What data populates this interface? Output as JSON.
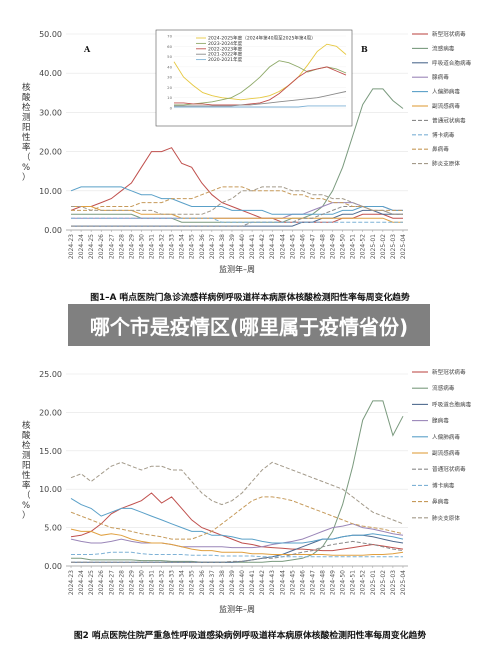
{
  "banner": {
    "text": "哪个市是疫情区(哪里属于疫情省份)"
  },
  "legend": {
    "items": [
      {
        "name": "新型冠状病毒",
        "color": "#c0504d",
        "dash": ""
      },
      {
        "name": "流感病毒",
        "color": "#7a9a7e",
        "dash": ""
      },
      {
        "name": "呼吸道合胞病毒",
        "color": "#4f6a8f",
        "dash": ""
      },
      {
        "name": "腺病毒",
        "color": "#9a86b8",
        "dash": ""
      },
      {
        "name": "人偏肺病毒",
        "color": "#5aa0c8",
        "dash": ""
      },
      {
        "name": "副流感病毒",
        "color": "#e0a040",
        "dash": ""
      },
      {
        "name": "普通冠状病毒",
        "color": "#8a8a8a",
        "dash": "4,2"
      },
      {
        "name": "博卡病毒",
        "color": "#7fb2d6",
        "dash": "4,2"
      },
      {
        "name": "鼻病毒",
        "color": "#c69a5a",
        "dash": "4,2"
      },
      {
        "name": "肺炎支原体",
        "color": "#a39a8a",
        "dash": "4,2"
      }
    ]
  },
  "chart_data": [
    {
      "type": "line",
      "title": "图1–A 哨点医院门急诊流感样病例呼吸道样本病原体核酸检测阳性率每周变化趋势",
      "panel_labels": [
        "A",
        "B"
      ],
      "xlabel": "监测年–周",
      "ylabel": "核酸检测阳性率（%）",
      "ylim": [
        0,
        50
      ],
      "yticks": [
        "0.00",
        "10.00",
        "20.00",
        "30.00",
        "40.00",
        "50.00"
      ],
      "x": [
        "2024-23",
        "2024-24",
        "2024-25",
        "2024-26",
        "2024-27",
        "2024-28",
        "2024-29",
        "2024-30",
        "2024-31",
        "2024-32",
        "2024-33",
        "2024-34",
        "2024-35",
        "2024-36",
        "2024-37",
        "2024-38",
        "2024-39",
        "2024-40",
        "2024-41",
        "2024-42",
        "2024-43",
        "2024-44",
        "2024-45",
        "2024-46",
        "2024-47",
        "2024-48",
        "2024-49",
        "2024-50",
        "2024-51",
        "2024-52",
        "2025-01",
        "2025-02",
        "2025-03",
        "2025-04"
      ],
      "series": [
        {
          "name": "新型冠状病毒",
          "values": [
            5,
            6,
            6,
            7,
            8,
            10,
            12,
            16,
            20,
            20,
            21,
            17,
            16,
            12,
            9,
            7,
            6,
            5,
            4,
            3,
            3,
            2,
            2,
            2,
            2,
            2,
            2,
            3,
            3,
            4,
            4,
            4,
            3,
            3
          ]
        },
        {
          "name": "流感病毒",
          "values": [
            4,
            4,
            4,
            4,
            4,
            4,
            4,
            3,
            3,
            3,
            3,
            2,
            2,
            2,
            2,
            2,
            2,
            2,
            2,
            2,
            2,
            2,
            3,
            3,
            4,
            6,
            10,
            16,
            24,
            32,
            36,
            36,
            33,
            31
          ]
        },
        {
          "name": "呼吸道合胞病毒",
          "values": [
            1,
            1,
            1,
            1,
            1,
            1,
            1,
            1,
            1,
            1,
            1,
            1,
            1,
            1,
            1,
            1,
            1,
            1,
            1,
            1,
            1,
            1,
            1,
            2,
            2,
            3,
            3,
            4,
            4,
            5,
            5,
            4,
            4,
            4
          ]
        },
        {
          "name": "腺病毒",
          "values": [
            3,
            3,
            3,
            3,
            3,
            3,
            3,
            3,
            3,
            3,
            3,
            3,
            3,
            3,
            3,
            3,
            3,
            3,
            3,
            3,
            3,
            3,
            4,
            4,
            5,
            6,
            7,
            7,
            7,
            6,
            6,
            6,
            5,
            5
          ]
        },
        {
          "name": "人偏肺病毒",
          "values": [
            10,
            11,
            11,
            11,
            11,
            11,
            10,
            9,
            9,
            8,
            8,
            7,
            6,
            6,
            6,
            6,
            5,
            5,
            5,
            5,
            4,
            4,
            4,
            4,
            4,
            4,
            4,
            5,
            5,
            6,
            6,
            6,
            5,
            5
          ]
        },
        {
          "name": "副流感病毒",
          "values": [
            6,
            6,
            6,
            5,
            5,
            5,
            5,
            4,
            4,
            4,
            4,
            3,
            3,
            3,
            3,
            3,
            3,
            3,
            3,
            3,
            3,
            3,
            3,
            3,
            3,
            3,
            3,
            3,
            3,
            3,
            3,
            3,
            2,
            2
          ]
        },
        {
          "name": "普通冠状病毒",
          "values": [
            1,
            1,
            1,
            1,
            1,
            1,
            1,
            1,
            1,
            1,
            1,
            1,
            1,
            1,
            1,
            1,
            1,
            1,
            2,
            2,
            2,
            2,
            2,
            3,
            3,
            4,
            5,
            6,
            6,
            6,
            5,
            5,
            4,
            4
          ]
        },
        {
          "name": "博卡病毒",
          "values": [
            3,
            3,
            3,
            3,
            3,
            3,
            3,
            3,
            3,
            3,
            3,
            3,
            3,
            3,
            3,
            2,
            2,
            2,
            2,
            2,
            2,
            2,
            2,
            2,
            2,
            2,
            2,
            2,
            2,
            2,
            2,
            2,
            2,
            2
          ]
        },
        {
          "name": "鼻病毒",
          "values": [
            5,
            5,
            5,
            6,
            6,
            6,
            6,
            7,
            7,
            7,
            8,
            8,
            8,
            9,
            10,
            11,
            11,
            11,
            10,
            10,
            10,
            10,
            9,
            9,
            8,
            8,
            7,
            7,
            6,
            6,
            5,
            5,
            5,
            5
          ]
        },
        {
          "name": "肺炎支原体",
          "values": [
            6,
            6,
            5,
            5,
            5,
            5,
            5,
            5,
            5,
            4,
            4,
            4,
            4,
            4,
            5,
            7,
            8,
            10,
            10,
            11,
            11,
            11,
            10,
            10,
            9,
            9,
            8,
            8,
            7,
            6,
            5,
            5,
            4,
            4
          ]
        }
      ],
      "inset": {
        "type": "line",
        "ylim": [
          0,
          70
        ],
        "yticks": [
          "0",
          "10",
          "20",
          "30",
          "40",
          "50",
          "60",
          "70"
        ],
        "series": [
          {
            "name": "2024-2025年度（2024年第40周至2025年第4周）",
            "color": "#e6c840",
            "values": [
              45,
              30,
              22,
              15,
              12,
              10,
              9,
              8,
              9,
              10,
              12,
              16,
              22,
              30,
              42,
              55,
              62,
              60,
              52
            ]
          },
          {
            "name": "2023-2024年度",
            "color": "#8faa6a",
            "values": [
              3,
              3,
              4,
              5,
              6,
              8,
              10,
              15,
              22,
              30,
              40,
              46,
              44,
              40,
              35,
              38,
              40,
              38,
              34
            ]
          },
          {
            "name": "2022-2023年度",
            "color": "#c0504d",
            "values": [
              5,
              5,
              4,
              4,
              3,
              3,
              3,
              3,
              4,
              5,
              8,
              14,
              22,
              30,
              36,
              38,
              40,
              36,
              32
            ]
          },
          {
            "name": "2021-2022年度",
            "color": "#8a8a8a",
            "values": [
              2,
              2,
              2,
              2,
              2,
              2,
              2,
              3,
              3,
              4,
              5,
              6,
              7,
              8,
              9,
              10,
              12,
              14,
              16
            ]
          },
          {
            "name": "2020-2021年度",
            "color": "#7fb2d6",
            "values": [
              1,
              1,
              1,
              1,
              1,
              1,
              1,
              1,
              1,
              1,
              1,
              1,
              1,
              1,
              2,
              2,
              2,
              2,
              2
            ]
          }
        ]
      }
    },
    {
      "type": "line",
      "title": "图2 哨点医院住院严重急性呼吸道感染病例呼吸道样本病原体核酸检测阳性率每周变化趋势",
      "xlabel": "监测年–周",
      "ylabel": "核酸检测阳性率（%）",
      "ylim": [
        0,
        25
      ],
      "yticks": [
        "0.00",
        "5.00",
        "10.00",
        "15.00",
        "20.00",
        "25.00"
      ],
      "x": [
        "2024-23",
        "2024-24",
        "2024-25",
        "2024-26",
        "2024-27",
        "2024-28",
        "2024-29",
        "2024-30",
        "2024-31",
        "2024-32",
        "2024-33",
        "2024-34",
        "2024-35",
        "2024-36",
        "2024-37",
        "2024-38",
        "2024-39",
        "2024-40",
        "2024-41",
        "2024-42",
        "2024-43",
        "2024-44",
        "2024-45",
        "2024-46",
        "2024-47",
        "2024-48",
        "2024-49",
        "2024-50",
        "2024-51",
        "2024-52",
        "2025-01",
        "2025-02",
        "2025-03",
        "2025-04"
      ],
      "series": [
        {
          "name": "新型冠状病毒",
          "values": [
            3.8,
            4.0,
            4.5,
            5.5,
            6.8,
            7.5,
            8.0,
            8.5,
            9.5,
            8.2,
            9.0,
            7.5,
            6.0,
            5.0,
            4.5,
            4.0,
            3.5,
            3.0,
            2.8,
            2.5,
            2.4,
            2.3,
            2.2,
            2.2,
            2.1,
            2.0,
            2.0,
            2.2,
            2.4,
            2.6,
            2.8,
            2.6,
            2.4,
            2.2
          ]
        },
        {
          "name": "流感病毒",
          "values": [
            1.0,
            1.0,
            0.8,
            0.8,
            0.8,
            0.8,
            0.8,
            0.7,
            0.7,
            0.7,
            0.6,
            0.6,
            0.6,
            0.5,
            0.5,
            0.5,
            0.5,
            0.5,
            0.5,
            0.5,
            0.6,
            0.6,
            0.8,
            1.0,
            1.5,
            2.5,
            4.5,
            8.0,
            13.0,
            19.0,
            21.5,
            21.5,
            17.0,
            19.5
          ]
        },
        {
          "name": "呼吸道合胞病毒",
          "values": [
            0.5,
            0.5,
            0.5,
            0.5,
            0.5,
            0.5,
            0.5,
            0.5,
            0.5,
            0.5,
            0.5,
            0.5,
            0.5,
            0.5,
            0.5,
            0.5,
            0.5,
            0.6,
            0.8,
            1.0,
            1.2,
            1.5,
            2.0,
            2.5,
            3.0,
            3.5,
            3.5,
            3.8,
            4.0,
            4.0,
            3.8,
            3.5,
            3.2,
            3.0
          ]
        },
        {
          "name": "腺病毒",
          "values": [
            3.5,
            3.2,
            3.0,
            3.0,
            3.2,
            3.5,
            3.2,
            3.0,
            3.0,
            3.0,
            2.8,
            2.5,
            2.5,
            2.5,
            2.5,
            2.5,
            2.4,
            2.4,
            2.4,
            2.5,
            2.8,
            3.0,
            3.2,
            3.5,
            4.0,
            4.5,
            5.0,
            5.2,
            5.5,
            5.0,
            4.8,
            4.5,
            4.2,
            4.0
          ]
        },
        {
          "name": "人偏肺病毒",
          "values": [
            8.8,
            8.0,
            7.5,
            6.5,
            7.0,
            7.5,
            7.5,
            7.0,
            6.5,
            6.0,
            5.5,
            5.0,
            4.5,
            4.5,
            4.0,
            4.0,
            3.8,
            3.5,
            3.5,
            3.2,
            3.0,
            3.0,
            3.0,
            3.0,
            3.2,
            3.5,
            3.5,
            3.8,
            4.0,
            4.0,
            4.2,
            4.0,
            3.8,
            3.5
          ]
        },
        {
          "name": "副流感病毒",
          "values": [
            4.8,
            4.5,
            4.5,
            4.0,
            4.2,
            4.0,
            3.5,
            3.2,
            3.0,
            3.0,
            2.8,
            2.5,
            2.2,
            2.0,
            2.0,
            1.8,
            1.8,
            1.8,
            1.6,
            1.6,
            1.5,
            1.5,
            1.5,
            1.5,
            1.5,
            1.5,
            1.4,
            1.4,
            1.4,
            1.4,
            1.5,
            1.5,
            1.6,
            1.8
          ]
        },
        {
          "name": "普通冠状病毒",
          "values": [
            0.5,
            0.5,
            0.5,
            0.5,
            0.5,
            0.5,
            0.5,
            0.5,
            0.5,
            0.5,
            0.5,
            0.5,
            0.5,
            0.5,
            0.5,
            0.5,
            0.6,
            0.6,
            0.8,
            1.0,
            1.0,
            1.2,
            1.5,
            1.8,
            2.0,
            2.5,
            2.8,
            3.0,
            3.2,
            3.0,
            2.8,
            2.5,
            2.2,
            2.0
          ]
        },
        {
          "name": "博卡病毒",
          "values": [
            1.5,
            1.5,
            1.5,
            1.6,
            1.8,
            1.8,
            1.8,
            1.6,
            1.5,
            1.5,
            1.5,
            1.5,
            1.4,
            1.4,
            1.4,
            1.3,
            1.3,
            1.3,
            1.3,
            1.2,
            1.2,
            1.2,
            1.2,
            1.2,
            1.2,
            1.2,
            1.2,
            1.2,
            1.2,
            1.2,
            1.2,
            1.2,
            1.2,
            1.2
          ]
        },
        {
          "name": "鼻病毒",
          "values": [
            7.0,
            6.5,
            6.0,
            5.5,
            5.0,
            4.8,
            4.5,
            4.2,
            4.0,
            3.8,
            3.5,
            3.5,
            3.5,
            4.0,
            4.5,
            5.5,
            6.5,
            7.5,
            8.5,
            9.0,
            9.0,
            8.8,
            8.5,
            8.0,
            7.5,
            7.0,
            6.5,
            6.0,
            5.5,
            5.2,
            5.0,
            4.8,
            4.5,
            4.2
          ]
        },
        {
          "name": "肺炎支原体",
          "values": [
            11.5,
            12.0,
            11.0,
            12.0,
            13.0,
            13.5,
            13.0,
            12.5,
            13.0,
            13.0,
            12.5,
            12.5,
            11.0,
            9.5,
            8.5,
            8.0,
            8.5,
            9.5,
            11.0,
            12.5,
            13.5,
            13.0,
            12.5,
            12.0,
            11.5,
            11.0,
            10.5,
            10.0,
            9.0,
            8.0,
            7.0,
            6.5,
            6.0,
            5.5
          ]
        }
      ]
    }
  ]
}
